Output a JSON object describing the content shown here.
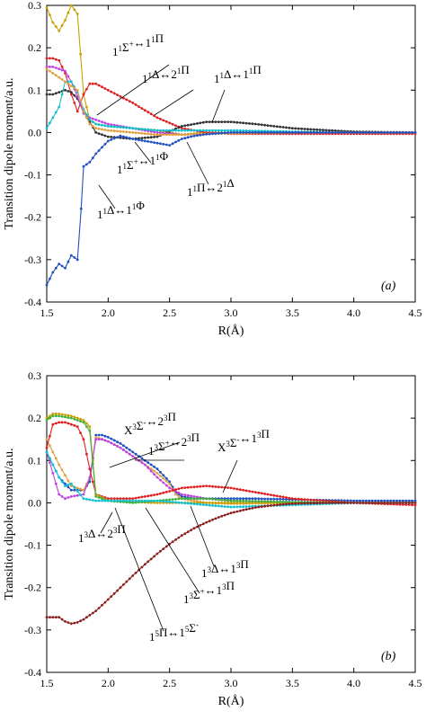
{
  "chart_data": [
    {
      "type": "line",
      "panel_label": "(a)",
      "xlabel": "R(Å)",
      "ylabel": "Transition dipole moment/a.u.",
      "xlim": [
        1.5,
        4.5
      ],
      "ylim": [
        -0.4,
        0.3
      ],
      "xticks": [
        1.5,
        2.0,
        2.5,
        3.0,
        3.5,
        4.0,
        4.5
      ],
      "yticks": [
        0.3,
        0.2,
        0.1,
        0.0,
        -0.1,
        -0.2,
        -0.3,
        -0.4
      ],
      "xtick_labels": [
        "1.5",
        "2.0",
        "2.5",
        "3.0",
        "3.5",
        "4.0",
        "4.5"
      ],
      "ytick_labels": [
        "0.3",
        "0.2",
        "0.1",
        "0.0",
        "-0.1",
        "-0.2",
        "-0.3",
        "-0.4"
      ],
      "series": [
        {
          "color": "#c8a000",
          "x": [
            1.5,
            1.55,
            1.6,
            1.65,
            1.7,
            1.75,
            1.8,
            1.85,
            1.9,
            2.0,
            2.2,
            2.4,
            2.6,
            2.8,
            3.0,
            3.5,
            4.0,
            4.5
          ],
          "y": [
            0.295,
            0.26,
            0.24,
            0.265,
            0.3,
            0.28,
            0.09,
            0.03,
            0.02,
            0.015,
            0.01,
            0.005,
            -0.005,
            0.0,
            0.0,
            0.0,
            0.0,
            0.0
          ]
        },
        {
          "color": "#e02020",
          "x": [
            1.5,
            1.55,
            1.6,
            1.65,
            1.7,
            1.75,
            1.8,
            1.85,
            1.9,
            2.0,
            2.2,
            2.4,
            2.6,
            2.8,
            3.0,
            3.5,
            4.0,
            4.5
          ],
          "y": [
            0.175,
            0.175,
            0.17,
            0.14,
            0.09,
            0.05,
            0.09,
            0.115,
            0.115,
            0.1,
            0.07,
            0.035,
            0.01,
            0.0,
            -0.003,
            -0.003,
            -0.003,
            -0.003
          ]
        },
        {
          "color": "#333333",
          "x": [
            1.5,
            1.55,
            1.6,
            1.65,
            1.7,
            1.75,
            1.8,
            1.85,
            1.9,
            2.0,
            2.2,
            2.4,
            2.6,
            2.8,
            3.0,
            3.2,
            3.5,
            3.8,
            4.0,
            4.5
          ],
          "y": [
            0.09,
            0.09,
            0.095,
            0.1,
            0.095,
            0.08,
            0.05,
            0.025,
            0.0,
            -0.01,
            -0.015,
            -0.01,
            0.015,
            0.025,
            0.025,
            0.02,
            0.01,
            0.005,
            0.002,
            0.0
          ]
        },
        {
          "color": "#c040e0",
          "x": [
            1.5,
            1.55,
            1.6,
            1.65,
            1.7,
            1.75,
            1.8,
            1.85,
            1.9,
            2.0,
            2.2,
            2.4,
            2.6,
            2.8,
            3.0,
            3.5,
            4.0,
            4.5
          ],
          "y": [
            0.155,
            0.155,
            0.15,
            0.145,
            0.12,
            0.085,
            0.045,
            0.035,
            0.03,
            0.02,
            0.01,
            0.0,
            -0.005,
            -0.003,
            0.0,
            0.0,
            0.0,
            0.0
          ]
        },
        {
          "color": "#10c0d0",
          "x": [
            1.5,
            1.55,
            1.6,
            1.65,
            1.7,
            1.75,
            1.8,
            1.85,
            1.9,
            2.0,
            2.2,
            2.4,
            2.6,
            2.8,
            3.0,
            3.5,
            4.0,
            4.5
          ],
          "y": [
            0.01,
            0.035,
            0.06,
            0.12,
            0.12,
            0.095,
            0.055,
            0.03,
            0.02,
            0.015,
            0.01,
            0.005,
            0.005,
            0.005,
            0.005,
            0.002,
            0.0,
            0.0
          ]
        },
        {
          "color": "#e0a040",
          "x": [
            1.5,
            1.6,
            1.7,
            1.75,
            1.8,
            1.85,
            1.9,
            2.0,
            2.2,
            2.4,
            2.6,
            2.8,
            3.0,
            3.5,
            4.0,
            4.5
          ],
          "y": [
            0.15,
            0.13,
            0.11,
            0.1,
            0.05,
            0.02,
            0.01,
            0.005,
            0.0,
            -0.005,
            -0.005,
            -0.003,
            -0.002,
            0.0,
            0.0,
            0.0
          ]
        },
        {
          "color": "#2050c0",
          "x": [
            1.5,
            1.55,
            1.6,
            1.65,
            1.7,
            1.75,
            1.78,
            1.8,
            1.85,
            1.9,
            2.0,
            2.1,
            2.2,
            2.3,
            2.4,
            2.5,
            2.6,
            2.7,
            2.8,
            3.0,
            3.2,
            3.5,
            4.0,
            4.5
          ],
          "y": [
            -0.36,
            -0.33,
            -0.31,
            -0.32,
            -0.29,
            -0.3,
            -0.18,
            -0.08,
            -0.07,
            -0.05,
            -0.02,
            -0.008,
            -0.015,
            -0.02,
            -0.025,
            -0.03,
            -0.015,
            -0.008,
            -0.004,
            0.0,
            0.0,
            0.0,
            0.0,
            0.0
          ]
        }
      ],
      "annotations": [
        {
          "parts": [
            [
              "1",
              ""
            ],
            [
              "1",
              "sup"
            ],
            [
              "Σ",
              ""
            ],
            [
              "+",
              "sup"
            ],
            [
              "↔1",
              ""
            ],
            [
              "1",
              "sup"
            ],
            [
              "Π",
              ""
            ]
          ]
        },
        {
          "parts": [
            [
              "1",
              ""
            ],
            [
              "1",
              "sup"
            ],
            [
              "Δ↔2",
              ""
            ],
            [
              "1",
              "sup"
            ],
            [
              "Π",
              ""
            ]
          ]
        },
        {
          "parts": [
            [
              "1",
              ""
            ],
            [
              "1",
              "sup"
            ],
            [
              "Δ↔1",
              ""
            ],
            [
              "1",
              "sup"
            ],
            [
              "Π",
              ""
            ]
          ]
        },
        {
          "parts": [
            [
              "1",
              ""
            ],
            [
              "1",
              "sup"
            ],
            [
              "Σ",
              ""
            ],
            [
              "+",
              "sup"
            ],
            [
              "↔1",
              ""
            ],
            [
              "1",
              "sup"
            ],
            [
              "Φ",
              ""
            ]
          ]
        },
        {
          "parts": [
            [
              "1",
              ""
            ],
            [
              "1",
              "sup"
            ],
            [
              "Π↔2",
              ""
            ],
            [
              "1",
              "sup"
            ],
            [
              "Δ",
              ""
            ]
          ]
        },
        {
          "parts": [
            [
              "1",
              ""
            ],
            [
              "1",
              "sup"
            ],
            [
              "Δ↔1",
              ""
            ],
            [
              "1",
              "sup"
            ],
            [
              "Φ",
              ""
            ]
          ]
        }
      ]
    },
    {
      "type": "line",
      "panel_label": "(b)",
      "xlabel": "R(Å)",
      "ylabel": "Transition dipole moment/a.u.",
      "xlim": [
        1.5,
        4.5
      ],
      "ylim": [
        -0.4,
        0.3
      ],
      "xticks": [
        1.5,
        2.0,
        2.5,
        3.0,
        3.5,
        4.0,
        4.5
      ],
      "yticks": [
        0.3,
        0.2,
        0.1,
        0.0,
        -0.1,
        -0.2,
        -0.3,
        -0.4
      ],
      "xtick_labels": [
        "1.5",
        "2.0",
        "2.5",
        "3.0",
        "3.5",
        "4.0",
        "4.5"
      ],
      "ytick_labels": [
        "0.3",
        "0.2",
        "0.1",
        "0.0",
        "-0.1",
        "-0.2",
        "-0.3",
        "-0.4"
      ],
      "series": [
        {
          "color": "#2050c0",
          "x": [
            1.5,
            1.6,
            1.7,
            1.8,
            1.85,
            1.9,
            1.95,
            2.0,
            2.1,
            2.2,
            2.3,
            2.4,
            2.5,
            2.55,
            2.6,
            2.7,
            2.8,
            3.0,
            3.2,
            3.5,
            4.0,
            4.5
          ],
          "y": [
            0.12,
            0.06,
            0.03,
            0.03,
            0.05,
            0.16,
            0.16,
            0.155,
            0.14,
            0.12,
            0.1,
            0.08,
            0.05,
            0.025,
            0.015,
            0.01,
            0.01,
            0.01,
            0.01,
            0.008,
            0.005,
            0.005
          ]
        },
        {
          "color": "#e0a040",
          "x": [
            1.5,
            1.6,
            1.7,
            1.8,
            1.85,
            1.9,
            1.95,
            2.0,
            2.1,
            2.2,
            2.3,
            2.4,
            2.5,
            2.55,
            2.6,
            2.7,
            2.8,
            3.0,
            3.5,
            4.0,
            4.5
          ],
          "y": [
            0.15,
            0.09,
            0.04,
            0.03,
            0.06,
            0.155,
            0.15,
            0.145,
            0.13,
            0.11,
            0.09,
            0.07,
            0.045,
            0.02,
            0.01,
            0.005,
            0.0,
            -0.002,
            0.0,
            0.0,
            0.0
          ]
        },
        {
          "color": "#c040e0",
          "x": [
            1.5,
            1.6,
            1.65,
            1.7,
            1.8,
            1.85,
            1.9,
            1.95,
            2.0,
            2.1,
            2.2,
            2.3,
            2.4,
            2.5,
            2.6,
            2.8,
            3.0,
            3.5,
            4.0,
            4.5
          ],
          "y": [
            0.12,
            0.02,
            0.01,
            0.015,
            0.02,
            0.06,
            0.15,
            0.15,
            0.145,
            0.13,
            0.11,
            0.09,
            0.06,
            0.035,
            0.02,
            0.01,
            0.005,
            0.002,
            0.0,
            0.0
          ]
        },
        {
          "color": "#e02020",
          "x": [
            1.5,
            1.55,
            1.6,
            1.65,
            1.7,
            1.75,
            1.8,
            1.85,
            1.9,
            2.0,
            2.2,
            2.4,
            2.6,
            2.8,
            3.0,
            3.2,
            3.5,
            4.0,
            4.5
          ],
          "y": [
            0.13,
            0.185,
            0.19,
            0.19,
            0.185,
            0.18,
            0.15,
            0.08,
            0.02,
            0.01,
            0.01,
            0.02,
            0.035,
            0.04,
            0.035,
            0.025,
            0.01,
            0.0,
            -0.005
          ]
        },
        {
          "color": "#c8a000",
          "x": [
            1.5,
            1.55,
            1.6,
            1.7,
            1.8,
            1.85,
            1.9,
            2.0,
            2.2,
            2.4,
            2.6,
            2.8,
            3.0,
            3.5,
            4.0,
            4.5
          ],
          "y": [
            0.2,
            0.21,
            0.21,
            0.205,
            0.195,
            0.18,
            0.02,
            0.005,
            0.002,
            0.0,
            0.0,
            0.0,
            0.0,
            0.0,
            0.0,
            0.0
          ]
        },
        {
          "color": "#40b040",
          "x": [
            1.5,
            1.55,
            1.6,
            1.7,
            1.8,
            1.85,
            1.9,
            2.0,
            2.2,
            2.4,
            2.6,
            2.8,
            3.0,
            3.5,
            4.0,
            4.5
          ],
          "y": [
            0.195,
            0.205,
            0.205,
            0.2,
            0.19,
            0.17,
            0.015,
            0.005,
            0.0,
            0.005,
            0.01,
            0.01,
            0.005,
            0.002,
            0.0,
            0.0
          ]
        },
        {
          "color": "#10c0d0",
          "x": [
            1.5,
            1.55,
            1.6,
            1.65,
            1.7,
            1.8,
            1.9,
            2.0,
            2.2,
            2.4,
            2.6,
            2.8,
            3.0,
            3.5,
            4.0,
            4.5
          ],
          "y": [
            0.12,
            0.09,
            0.06,
            0.04,
            0.045,
            0.01,
            0.005,
            0.005,
            0.005,
            0.005,
            0.0,
            -0.005,
            -0.01,
            -0.005,
            0.0,
            0.0
          ]
        },
        {
          "color": "#8b2020",
          "x": [
            1.5,
            1.55,
            1.6,
            1.65,
            1.7,
            1.75,
            1.8,
            1.9,
            2.0,
            2.1,
            2.2,
            2.3,
            2.4,
            2.5,
            2.6,
            2.7,
            2.8,
            2.9,
            3.0,
            3.1,
            3.2,
            3.3,
            3.4,
            3.5,
            3.6,
            3.8,
            4.0,
            4.25,
            4.5
          ],
          "y": [
            -0.27,
            -0.27,
            -0.27,
            -0.28,
            -0.285,
            -0.282,
            -0.275,
            -0.255,
            -0.228,
            -0.2,
            -0.172,
            -0.145,
            -0.12,
            -0.097,
            -0.077,
            -0.06,
            -0.046,
            -0.034,
            -0.024,
            -0.017,
            -0.011,
            -0.007,
            -0.004,
            -0.002,
            -0.001,
            0.0,
            0.0,
            0.0,
            0.0
          ]
        }
      ],
      "annotations": [
        {
          "parts": [
            [
              "X",
              ""
            ],
            [
              "3",
              "sup"
            ],
            [
              "Σ",
              ""
            ],
            [
              "-",
              "sup"
            ],
            [
              "↔2",
              ""
            ],
            [
              "3",
              "sup"
            ],
            [
              "Π",
              ""
            ]
          ]
        },
        {
          "parts": [
            [
              "1",
              ""
            ],
            [
              "3",
              "sup"
            ],
            [
              "Σ",
              ""
            ],
            [
              "+",
              "sup"
            ],
            [
              "↔2",
              ""
            ],
            [
              "3",
              "sup"
            ],
            [
              "Π",
              ""
            ]
          ]
        },
        {
          "parts": [
            [
              "X",
              ""
            ],
            [
              "3",
              "sup"
            ],
            [
              "Σ",
              ""
            ],
            [
              "-",
              "sup"
            ],
            [
              "↔1",
              ""
            ],
            [
              "3",
              "sup"
            ],
            [
              "Π",
              ""
            ]
          ]
        },
        {
          "parts": [
            [
              "1",
              ""
            ],
            [
              "3",
              "sup"
            ],
            [
              "Δ↔2",
              ""
            ],
            [
              "3",
              "sup"
            ],
            [
              "Π",
              ""
            ]
          ]
        },
        {
          "parts": [
            [
              "1",
              ""
            ],
            [
              "3",
              "sup"
            ],
            [
              "Δ↔1",
              ""
            ],
            [
              "3",
              "sup"
            ],
            [
              "Π",
              ""
            ]
          ]
        },
        {
          "parts": [
            [
              "1",
              ""
            ],
            [
              "3",
              "sup"
            ],
            [
              "Σ",
              ""
            ],
            [
              "+",
              "sup"
            ],
            [
              "↔1",
              ""
            ],
            [
              "3",
              "sup"
            ],
            [
              "Π",
              ""
            ]
          ]
        },
        {
          "parts": [
            [
              "1",
              ""
            ],
            [
              "5",
              "sup"
            ],
            [
              "Π↔1",
              ""
            ],
            [
              "5",
              "sup"
            ],
            [
              "Σ",
              ""
            ],
            [
              "-",
              "sup"
            ]
          ]
        }
      ]
    }
  ]
}
